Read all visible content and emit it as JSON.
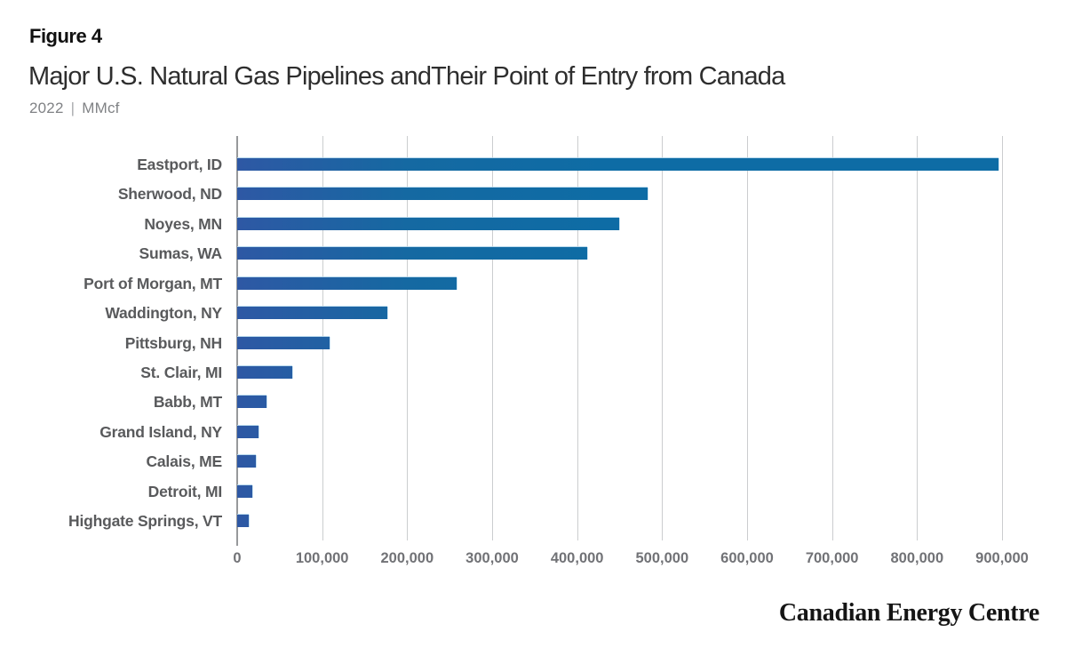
{
  "header": {
    "figure_label": "Figure 4",
    "title": "Major U.S. Natural Gas Pipelines andTheir Point of Entry from Canada",
    "subtitle_year": "2022",
    "subtitle_sep": "|",
    "subtitle_unit": "MMcf"
  },
  "chart_data": {
    "type": "bar",
    "orientation": "horizontal",
    "title": "Major U.S. Natural Gas Pipelines andTheir Point of Entry from Canada",
    "unit": "MMcf",
    "year": "2022",
    "categories": [
      "Eastport, ID",
      "Sherwood, ND",
      "Noyes, MN",
      "Sumas, WA",
      "Port of Morgan, MT",
      "Waddington, NY",
      "Pittsburg, NH",
      "St. Clair, MI",
      "Babb, MT",
      "Grand Island, NY",
      "Calais, ME",
      "Detroit, MI",
      "Highgate Springs, VT"
    ],
    "values": [
      896000,
      483000,
      449000,
      412000,
      258000,
      177000,
      109000,
      65000,
      34000,
      25000,
      22000,
      18000,
      14000
    ],
    "xlim": [
      0,
      900000
    ],
    "x_tick_step": 100000,
    "x_tick_labels": [
      "0",
      "100,000",
      "200,000",
      "300,000",
      "400,000",
      "500,000",
      "600,000",
      "700,000",
      "800,000",
      "900,000"
    ],
    "grid": "vertical-gridlines-on",
    "legend": "none",
    "bar_color_left": "#2e58a4",
    "bar_color_right": "#0e6ca5",
    "gridline_color": "#cbcdcf",
    "axis_color": "#97999b",
    "category_label_color": "#595a5c",
    "tick_label_color": "#717276"
  },
  "footer": {
    "brand": "Canadian Energy Centre"
  }
}
